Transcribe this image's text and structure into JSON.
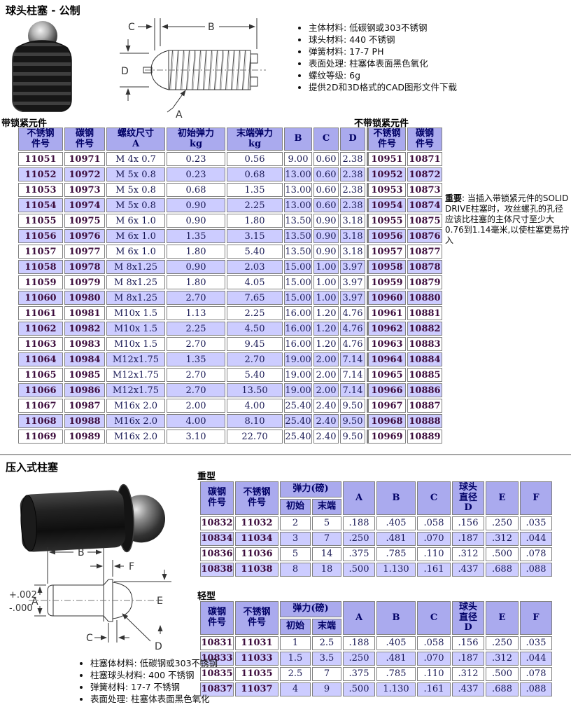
{
  "main_section": {
    "title": "球头柱塞 - 公制",
    "bullets": [
      "主体材料: 低碳钢或303不锈钢",
      "球头材料: 440 不锈钢",
      "弹簧材料: 17-7 PH",
      "表面处理: 柱塞体表面黑色氧化",
      "螺纹等级: 6g",
      "提供2D和3D格式的CAD图形文件下载"
    ],
    "label_with": "带锁紧元件",
    "label_without": "不带锁紧元件",
    "headers": [
      "不锈钢\n件号",
      "碳钢\n件号",
      "螺纹尺寸\nA",
      "初始弹力\nkg",
      "末端弹力\nkg",
      "B",
      "C",
      "D",
      "不锈钢\n件号",
      "碳钢\n件号"
    ],
    "rows": [
      [
        "11051",
        "10971",
        "M 4x 0.7",
        "0.23",
        "0.56",
        "9.00",
        "0.60",
        "2.38",
        "10951",
        "10871"
      ],
      [
        "11052",
        "10972",
        "M 5x 0.8",
        "0.23",
        "0.68",
        "13.00",
        "0.60",
        "2.38",
        "10952",
        "10872"
      ],
      [
        "11053",
        "10973",
        "M 5x 0.8",
        "0.68",
        "1.35",
        "13.00",
        "0.60",
        "2.38",
        "10953",
        "10873"
      ],
      [
        "11054",
        "10974",
        "M 5x 0.8",
        "0.90",
        "2.25",
        "13.00",
        "0.60",
        "2.38",
        "10954",
        "10874"
      ],
      [
        "11055",
        "10975",
        "M 6x 1.0",
        "0.90",
        "1.80",
        "13.50",
        "0.90",
        "3.18",
        "10955",
        "10875"
      ],
      [
        "11056",
        "10976",
        "M 6x 1.0",
        "1.35",
        "3.15",
        "13.50",
        "0.90",
        "3.18",
        "10956",
        "10876"
      ],
      [
        "11057",
        "10977",
        "M 6x 1.0",
        "1.80",
        "5.40",
        "13.50",
        "0.90",
        "3.18",
        "10957",
        "10877"
      ],
      [
        "11058",
        "10978",
        "M 8x1.25",
        "0.90",
        "2.03",
        "15.00",
        "1.00",
        "3.97",
        "10958",
        "10878"
      ],
      [
        "11059",
        "10979",
        "M 8x1.25",
        "1.80",
        "4.05",
        "15.00",
        "1.00",
        "3.97",
        "10959",
        "10879"
      ],
      [
        "11060",
        "10980",
        "M 8x1.25",
        "2.70",
        "7.65",
        "15.00",
        "1.00",
        "3.97",
        "10960",
        "10880"
      ],
      [
        "11061",
        "10981",
        "M10x 1.5",
        "1.13",
        "2.25",
        "16.00",
        "1.20",
        "4.76",
        "10961",
        "10881"
      ],
      [
        "11062",
        "10982",
        "M10x 1.5",
        "2.25",
        "4.50",
        "16.00",
        "1.20",
        "4.76",
        "10962",
        "10882"
      ],
      [
        "11063",
        "10983",
        "M10x 1.5",
        "2.70",
        "9.45",
        "16.00",
        "1.20",
        "4.76",
        "10963",
        "10883"
      ],
      [
        "11064",
        "10984",
        "M12x1.75",
        "1.35",
        "2.70",
        "19.00",
        "2.00",
        "7.14",
        "10964",
        "10884"
      ],
      [
        "11065",
        "10985",
        "M12x1.75",
        "2.70",
        "5.40",
        "19.00",
        "2.00",
        "7.14",
        "10965",
        "10885"
      ],
      [
        "11066",
        "10986",
        "M12x1.75",
        "2.70",
        "13.50",
        "19.00",
        "2.00",
        "7.14",
        "10966",
        "10886"
      ],
      [
        "11067",
        "10987",
        "M16x 2.0",
        "2.00",
        "4.00",
        "25.40",
        "2.40",
        "9.50",
        "10967",
        "10887"
      ],
      [
        "11068",
        "10988",
        "M16x 2.0",
        "4.00",
        "8.10",
        "25.40",
        "2.40",
        "9.50",
        "10968",
        "10888"
      ],
      [
        "11069",
        "10989",
        "M16x 2.0",
        "3.10",
        "22.70",
        "25.40",
        "2.40",
        "9.50",
        "10969",
        "10889"
      ]
    ],
    "note_label": "重要",
    "note_text": ": 当插入带锁紧元件的SOLID DRIVE柱塞时，攻丝螺孔的孔径应该比柱塞的主体尺寸至少大0.76到1.14毫米,以使柱塞更易拧入"
  },
  "press_section": {
    "title": "压入式柱塞",
    "headers": {
      "carbon": "碳钢\n件号",
      "stainless": "不锈钢\n件号",
      "force": "弹力(磅)",
      "initial": "初始",
      "end": "末端",
      "a": "A",
      "b": "B",
      "c": "C",
      "ball": "球头\n直径\nD",
      "e": "E",
      "f": "F"
    },
    "heavy": {
      "label": "重型",
      "rows": [
        [
          "10832",
          "11032",
          "2",
          "5",
          ".188",
          ".405",
          ".058",
          ".156",
          ".250",
          ".035"
        ],
        [
          "10834",
          "11034",
          "3",
          "7",
          ".250",
          ".481",
          ".070",
          ".187",
          ".312",
          ".044"
        ],
        [
          "10836",
          "11036",
          "5",
          "14",
          ".375",
          ".785",
          ".110",
          ".312",
          ".500",
          ".078"
        ],
        [
          "10838",
          "11038",
          "8",
          "18",
          ".500",
          "1.130",
          ".161",
          ".437",
          ".688",
          ".088"
        ]
      ]
    },
    "light": {
      "label": "轻型",
      "rows": [
        [
          "10831",
          "11031",
          "1",
          "2.5",
          ".188",
          ".405",
          ".058",
          ".156",
          ".250",
          ".035"
        ],
        [
          "10833",
          "11033",
          "1.5",
          "3.5",
          ".250",
          ".481",
          ".070",
          ".187",
          ".312",
          ".044"
        ],
        [
          "10835",
          "11035",
          "2.5",
          "7",
          ".375",
          ".785",
          ".110",
          ".312",
          ".500",
          ".078"
        ],
        [
          "10837",
          "11037",
          "4",
          "9",
          ".500",
          "1.130",
          ".161",
          ".437",
          ".688",
          ".088"
        ]
      ]
    },
    "bullets": [
      "柱塞体材料: 低碳钢或303不锈钢",
      "柱塞球头材料: 400 不锈钢",
      "弹簧材料: 17-7 不锈钢",
      "表面处理: 柱塞体表面黑色氧化"
    ]
  },
  "diagrams": {
    "ball_plunger": {
      "c": "C",
      "b": "B",
      "d": "D",
      "a": "A"
    },
    "press_plunger": {
      "b": "B",
      "f": "F",
      "a": "A",
      "e": "E",
      "c": "C",
      "d": "D",
      "tol_plus": "+.002",
      "tol_minus": "-.000"
    }
  },
  "colors": {
    "header_bg": "#aaaaee",
    "alt_row_bg": "#ccccff",
    "part_number_text": "#3d0d3d",
    "value_text": "#1a1a55",
    "header_text": "#000066",
    "grid_border": "#808080"
  }
}
